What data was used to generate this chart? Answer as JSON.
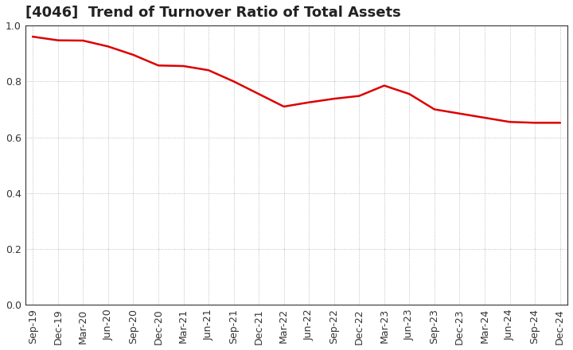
{
  "title": "[4046]  Trend of Turnover Ratio of Total Assets",
  "x_labels": [
    "Sep-19",
    "Dec-19",
    "Mar-20",
    "Jun-20",
    "Sep-20",
    "Dec-20",
    "Mar-21",
    "Jun-21",
    "Sep-21",
    "Dec-21",
    "Mar-22",
    "Jun-22",
    "Sep-22",
    "Dec-22",
    "Mar-23",
    "Jun-23",
    "Sep-23",
    "Dec-23",
    "Mar-24",
    "Jun-24",
    "Sep-24",
    "Dec-24"
  ],
  "y_values": [
    0.96,
    0.947,
    0.946,
    0.925,
    0.895,
    0.857,
    0.855,
    0.84,
    0.8,
    0.755,
    0.71,
    0.725,
    0.738,
    0.748,
    0.785,
    0.755,
    0.7,
    0.685,
    0.67,
    0.655,
    0.652,
    0.652
  ],
  "line_color": "#dd0000",
  "line_width": 1.8,
  "ylim": [
    0.0,
    1.0
  ],
  "yticks": [
    0.0,
    0.2,
    0.4,
    0.6,
    0.8,
    1.0
  ],
  "background_color": "#ffffff",
  "grid_color": "#999999",
  "title_fontsize": 13,
  "tick_fontsize": 9,
  "label_color": "#333333"
}
